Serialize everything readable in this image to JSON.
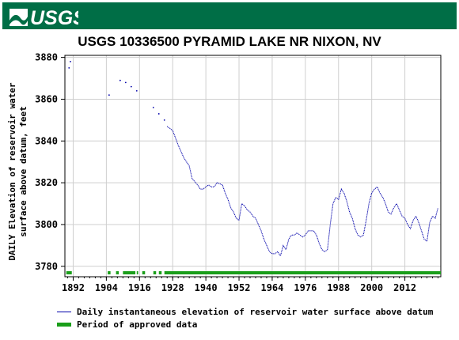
{
  "header": {
    "logo_text": "USGS",
    "brand_color": "#006e46"
  },
  "chart_data": {
    "type": "line",
    "title": "USGS 10336500 PYRAMID LAKE NR NIXON, NV",
    "ylabel": "DAILY Elevation of reservoir water\nsurface above datum, feet",
    "xlabel": "",
    "xlim": [
      1889,
      2025
    ],
    "ylim": [
      3775,
      3881
    ],
    "x_ticks": [
      1892,
      1904,
      1916,
      1928,
      1940,
      1952,
      1964,
      1976,
      1988,
      2000,
      2012
    ],
    "y_ticks": [
      3780,
      3800,
      3820,
      3840,
      3860,
      3880
    ],
    "series": [
      {
        "name": "Daily instantaneous elevation of reservoir water surface above datum",
        "color": "#0000aa",
        "x": [
          1890.5,
          1891,
          1905,
          1909,
          1911,
          1913,
          1915,
          1921,
          1923,
          1925,
          1926,
          1927,
          1928,
          1930,
          1932,
          1934,
          1935,
          1937,
          1938,
          1939,
          1940,
          1941,
          1942,
          1943,
          1944,
          1946,
          1947,
          1948,
          1949,
          1950,
          1951,
          1952,
          1953,
          1954,
          1955,
          1956,
          1957,
          1958,
          1959,
          1960,
          1961,
          1962,
          1963,
          1964,
          1965,
          1966,
          1967,
          1968,
          1969,
          1970,
          1971,
          1972,
          1973,
          1974,
          1975,
          1976,
          1977,
          1978,
          1979,
          1980,
          1981,
          1982,
          1983,
          1984,
          1985,
          1986,
          1987,
          1988,
          1989,
          1990,
          1991,
          1992,
          1993,
          1994,
          1995,
          1996,
          1997,
          1998,
          1999,
          2000,
          2001,
          2002,
          2003,
          2004,
          2005,
          2006,
          2007,
          2008,
          2009,
          2010,
          2011,
          2012,
          2013,
          2014,
          2015,
          2016,
          2017,
          2018,
          2019,
          2020,
          2021,
          2022,
          2023,
          2024
        ],
        "y": [
          3875,
          3878,
          3862,
          3869,
          3868,
          3866,
          3864,
          3856,
          3853,
          3850,
          3847,
          3846,
          3845,
          3838,
          3832,
          3828,
          3822,
          3819,
          3817,
          3817,
          3818,
          3819,
          3818,
          3818,
          3820,
          3819,
          3815,
          3812,
          3808,
          3806,
          3803,
          3802,
          3810,
          3809,
          3807,
          3806,
          3804,
          3803,
          3800,
          3797,
          3793,
          3790,
          3787,
          3786,
          3786,
          3787,
          3785,
          3790,
          3788,
          3793,
          3795,
          3795,
          3796,
          3795,
          3794,
          3795,
          3797,
          3797,
          3797,
          3795,
          3791,
          3788,
          3787,
          3788,
          3800,
          3810,
          3813,
          3812,
          3817,
          3815,
          3811,
          3806,
          3803,
          3798,
          3795,
          3794,
          3795,
          3802,
          3810,
          3815,
          3817,
          3818,
          3815,
          3813,
          3810,
          3806,
          3805,
          3808,
          3810,
          3807,
          3804,
          3803,
          3800,
          3798,
          3802,
          3804,
          3801,
          3797,
          3793,
          3792,
          3801,
          3804,
          3803,
          3808
        ]
      },
      {
        "name": "Period of approved data",
        "color": "#1a9e1a",
        "type": "periods",
        "ranges": [
          [
            1889.5,
            1891.5
          ],
          [
            1904.5,
            1905.5
          ],
          [
            1907.5,
            1908.5
          ],
          [
            1910,
            1914.5
          ],
          [
            1915,
            1915.5
          ],
          [
            1917,
            1918
          ],
          [
            1921,
            1922
          ],
          [
            1923,
            1924
          ],
          [
            1925,
            2025
          ]
        ]
      }
    ],
    "grid": true,
    "legend_position": "bottom"
  }
}
